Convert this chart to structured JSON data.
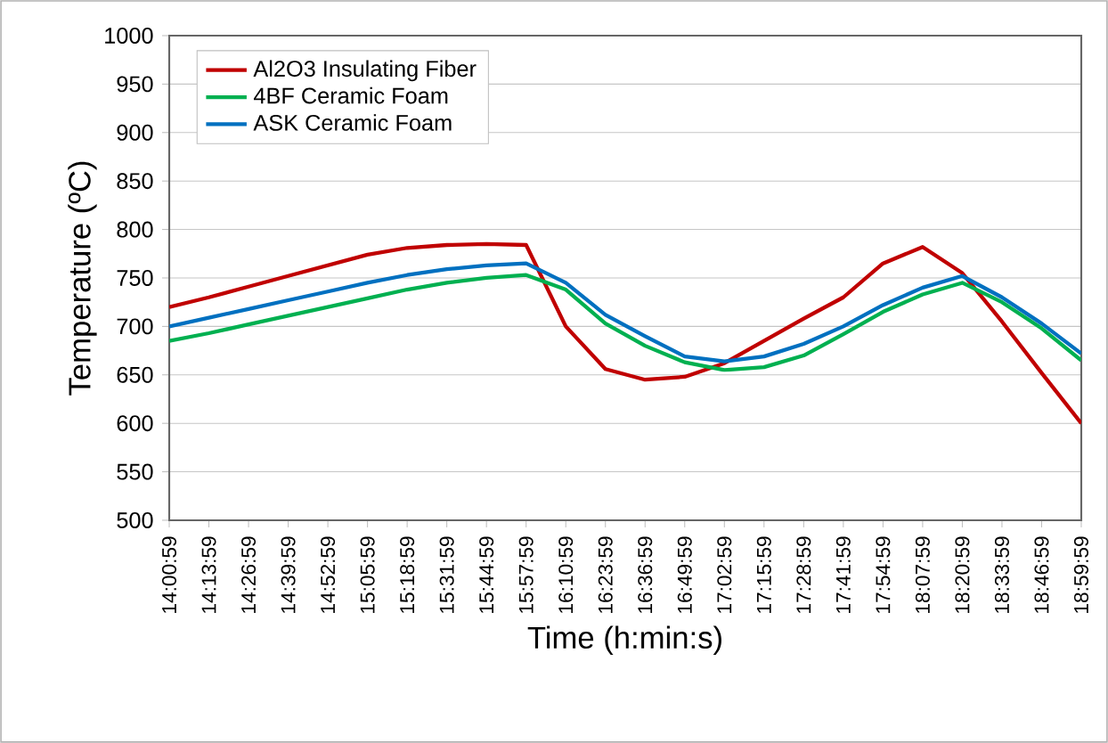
{
  "chart_data": {
    "type": "line",
    "xlabel": "Time (h:min:s)",
    "ylabel": "Temperature (ºC)",
    "categories": [
      "14:00:59",
      "14:13:59",
      "14:26:59",
      "14:39:59",
      "14:52:59",
      "15:05:59",
      "15:18:59",
      "15:31:59",
      "15:44:59",
      "15:57:59",
      "16:10:59",
      "16:23:59",
      "16:36:59",
      "16:49:59",
      "17:02:59",
      "17:15:59",
      "17:28:59",
      "17:41:59",
      "17:54:59",
      "18:07:59",
      "18:20:59",
      "18:33:59",
      "18:46:59",
      "18:59:59"
    ],
    "series": [
      {
        "name": "Al2O3 Insulating Fiber",
        "color": "#c00000",
        "values": [
          720,
          730,
          741,
          752,
          763,
          774,
          781,
          784,
          785,
          784,
          700,
          656,
          645,
          648,
          662,
          685,
          708,
          730,
          765,
          782,
          755,
          705,
          652,
          600
        ]
      },
      {
        "name": "4BF Ceramic Foam",
        "color": "#00b050",
        "values": [
          685,
          693,
          702,
          711,
          720,
          729,
          738,
          745,
          750,
          753,
          738,
          703,
          680,
          663,
          655,
          658,
          670,
          692,
          715,
          733,
          745,
          725,
          698,
          665
        ]
      },
      {
        "name": "ASK Ceramic Foam",
        "color": "#0070c0",
        "values": [
          700,
          709,
          718,
          727,
          736,
          745,
          753,
          759,
          763,
          765,
          745,
          712,
          690,
          669,
          664,
          669,
          682,
          700,
          722,
          740,
          752,
          730,
          703,
          672
        ]
      }
    ],
    "ylim": [
      500,
      1000
    ],
    "yticks": [
      500,
      550,
      600,
      650,
      700,
      750,
      800,
      850,
      900,
      950,
      1000
    ],
    "grid": "y",
    "legend": "top left",
    "marker": "none",
    "line_style": "solid"
  }
}
